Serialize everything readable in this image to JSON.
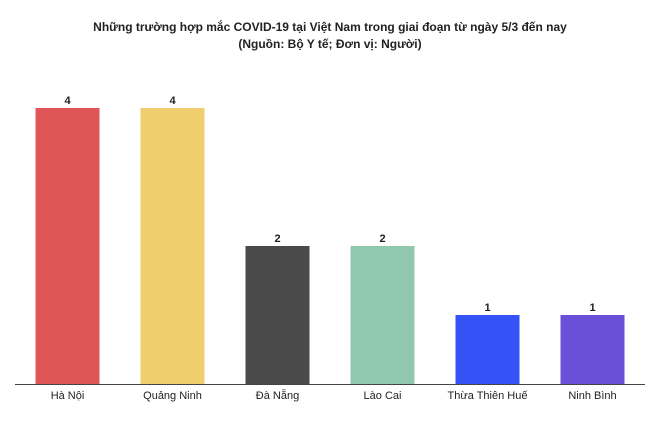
{
  "chart_data": {
    "type": "bar",
    "title": "Những trường hợp mắc COVID-19 tại Việt Nam trong giai đoạn từ ngày 5/3 đến nay",
    "subtitle": "(Nguồn: Bộ Y tế; Đơn vị: Người)",
    "categories": [
      "Hà Nội",
      "Quảng Ninh",
      "Đà Nẵng",
      "Lào Cai",
      "Thừa Thiên Huế",
      "Ninh Bình"
    ],
    "values": [
      4,
      4,
      2,
      2,
      1,
      1
    ],
    "colors": [
      "#e05558",
      "#f0cd6e",
      "#4a4a4a",
      "#8fc8ad",
      "#3452f5",
      "#6a4fd8"
    ]
  }
}
